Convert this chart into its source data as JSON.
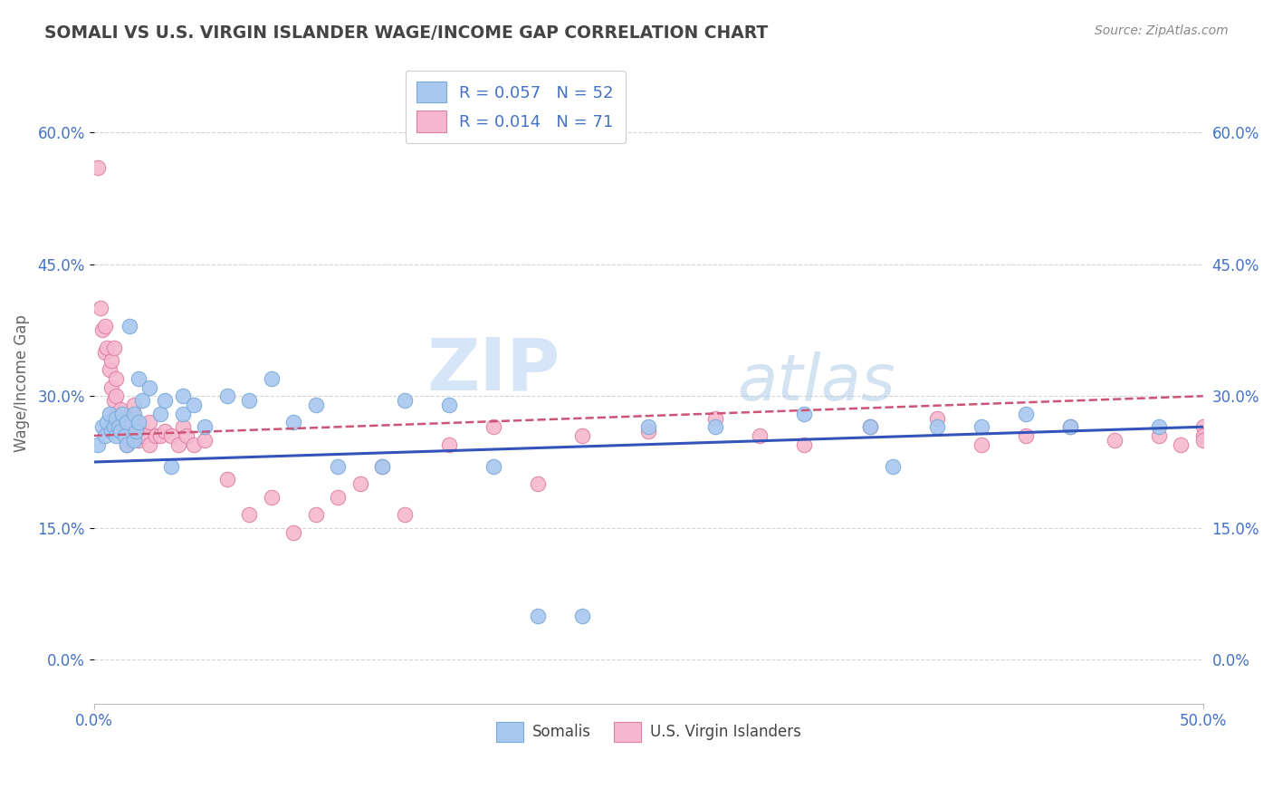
{
  "title": "SOMALI VS U.S. VIRGIN ISLANDER WAGE/INCOME GAP CORRELATION CHART",
  "source": "Source: ZipAtlas.com",
  "ylabel": "Wage/Income Gap",
  "xlim": [
    0.0,
    0.5
  ],
  "ylim": [
    -0.05,
    0.68
  ],
  "ytick_vals": [
    0.0,
    0.15,
    0.3,
    0.45,
    0.6
  ],
  "watermark_zip": "ZIP",
  "watermark_atlas": "atlas",
  "legend_R1": "0.057",
  "legend_N1": "52",
  "legend_R2": "0.014",
  "legend_N2": "71",
  "somali_color": "#a8c8f0",
  "somali_edge": "#7aaad8",
  "virgin_color": "#f5b8ce",
  "virgin_edge": "#e080a8",
  "trend_somali_color": "#3355bb",
  "trend_virgin_color": "#cc5577",
  "grid_color": "#cccccc",
  "bg_color": "#ffffff",
  "title_color": "#444444",
  "axis_label_color": "#4472c4",
  "source_color": "#888888",
  "ylabel_color": "#666666",
  "somali_x": [
    0.002,
    0.004,
    0.005,
    0.006,
    0.007,
    0.008,
    0.009,
    0.01,
    0.01,
    0.011,
    0.012,
    0.013,
    0.014,
    0.015,
    0.015,
    0.016,
    0.018,
    0.018,
    0.019,
    0.02,
    0.02,
    0.022,
    0.025,
    0.03,
    0.032,
    0.035,
    0.04,
    0.04,
    0.045,
    0.05,
    0.06,
    0.07,
    0.08,
    0.09,
    0.1,
    0.11,
    0.13,
    0.14,
    0.16,
    0.18,
    0.2,
    0.22,
    0.25,
    0.28,
    0.32,
    0.35,
    0.36,
    0.38,
    0.4,
    0.42,
    0.44,
    0.48
  ],
  "somali_y": [
    0.245,
    0.265,
    0.255,
    0.27,
    0.28,
    0.26,
    0.265,
    0.255,
    0.275,
    0.265,
    0.26,
    0.28,
    0.255,
    0.245,
    0.27,
    0.38,
    0.25,
    0.28,
    0.26,
    0.27,
    0.32,
    0.295,
    0.31,
    0.28,
    0.295,
    0.22,
    0.28,
    0.3,
    0.29,
    0.265,
    0.3,
    0.295,
    0.32,
    0.27,
    0.29,
    0.22,
    0.22,
    0.295,
    0.29,
    0.22,
    0.05,
    0.05,
    0.265,
    0.265,
    0.28,
    0.265,
    0.22,
    0.265,
    0.265,
    0.28,
    0.265,
    0.265
  ],
  "virgin_x": [
    0.002,
    0.003,
    0.004,
    0.005,
    0.005,
    0.006,
    0.007,
    0.008,
    0.008,
    0.009,
    0.009,
    0.01,
    0.01,
    0.01,
    0.011,
    0.012,
    0.012,
    0.013,
    0.014,
    0.015,
    0.015,
    0.016,
    0.016,
    0.017,
    0.018,
    0.018,
    0.019,
    0.02,
    0.02,
    0.021,
    0.022,
    0.023,
    0.025,
    0.025,
    0.028,
    0.03,
    0.032,
    0.035,
    0.038,
    0.04,
    0.042,
    0.045,
    0.05,
    0.06,
    0.07,
    0.08,
    0.09,
    0.1,
    0.11,
    0.12,
    0.13,
    0.14,
    0.16,
    0.18,
    0.2,
    0.22,
    0.25,
    0.28,
    0.3,
    0.32,
    0.35,
    0.38,
    0.4,
    0.42,
    0.44,
    0.46,
    0.48,
    0.49,
    0.5,
    0.5,
    0.5
  ],
  "virgin_y": [
    0.56,
    0.4,
    0.375,
    0.38,
    0.35,
    0.355,
    0.33,
    0.31,
    0.34,
    0.355,
    0.295,
    0.28,
    0.3,
    0.32,
    0.275,
    0.27,
    0.285,
    0.27,
    0.275,
    0.245,
    0.265,
    0.265,
    0.25,
    0.25,
    0.275,
    0.29,
    0.255,
    0.25,
    0.265,
    0.255,
    0.26,
    0.255,
    0.245,
    0.27,
    0.255,
    0.255,
    0.26,
    0.255,
    0.245,
    0.265,
    0.255,
    0.245,
    0.25,
    0.205,
    0.165,
    0.185,
    0.145,
    0.165,
    0.185,
    0.2,
    0.22,
    0.165,
    0.245,
    0.265,
    0.2,
    0.255,
    0.26,
    0.275,
    0.255,
    0.245,
    0.265,
    0.275,
    0.245,
    0.255,
    0.265,
    0.25,
    0.255,
    0.245,
    0.265,
    0.255,
    0.25
  ]
}
